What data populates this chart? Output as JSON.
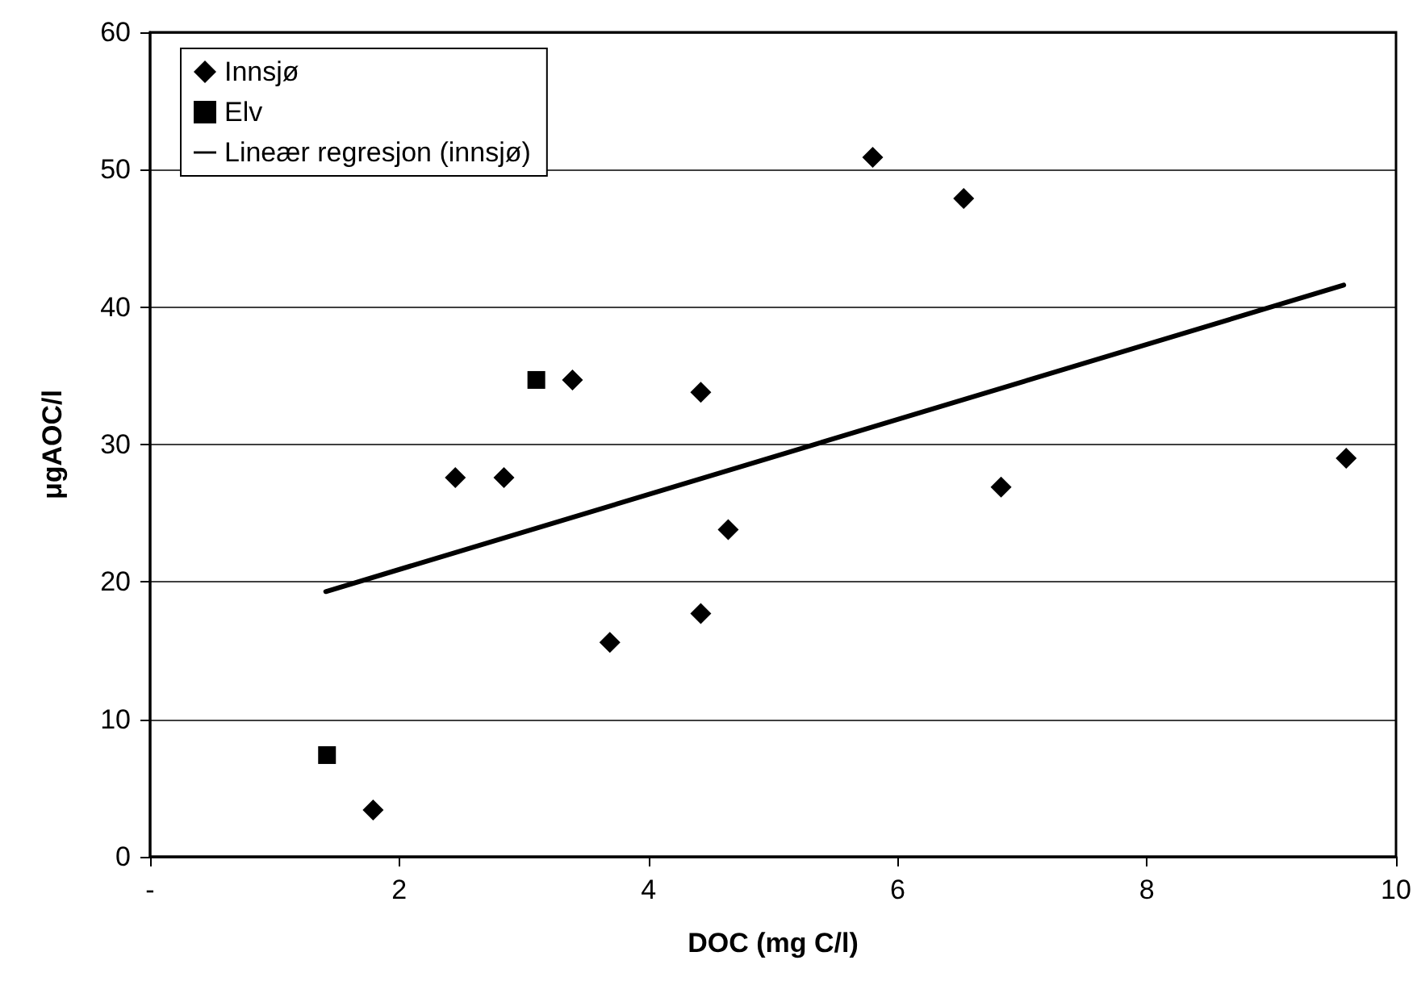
{
  "chart_data": {
    "type": "scatter",
    "xlabel": "DOC (mg C/l)",
    "ylabel": "μgAOC/l",
    "xlim": [
      0,
      10
    ],
    "xticks": [
      {
        "value": 0,
        "label": "-"
      },
      2,
      4,
      6,
      8,
      10
    ],
    "ylim": [
      0,
      60
    ],
    "yticks": [
      0,
      10,
      20,
      30,
      40,
      50,
      60
    ],
    "grid": "y",
    "legend": "top left",
    "series": [
      {
        "name": "Innsjø",
        "color": "#000000",
        "marker": "diamond",
        "x": [
          1.79,
          2.45,
          2.84,
          3.39,
          3.69,
          4.42,
          4.42,
          4.64,
          5.8,
          6.53,
          6.83,
          9.6
        ],
        "values": [
          3.4,
          27.6,
          27.6,
          34.7,
          15.6,
          33.8,
          17.7,
          23.8,
          50.9,
          47.9,
          26.9,
          29.0
        ]
      },
      {
        "name": "Elv",
        "color": "#000000",
        "marker": "square",
        "x": [
          1.42,
          3.1
        ],
        "values": [
          7.4,
          34.7
        ]
      },
      {
        "name": "Lineær regresjon (innsjø)",
        "type": "line",
        "color": "#000000",
        "marker": "none",
        "line_style": "solid",
        "x": [
          1.41,
          9.58
        ],
        "values": [
          19.3,
          41.6
        ]
      }
    ]
  }
}
